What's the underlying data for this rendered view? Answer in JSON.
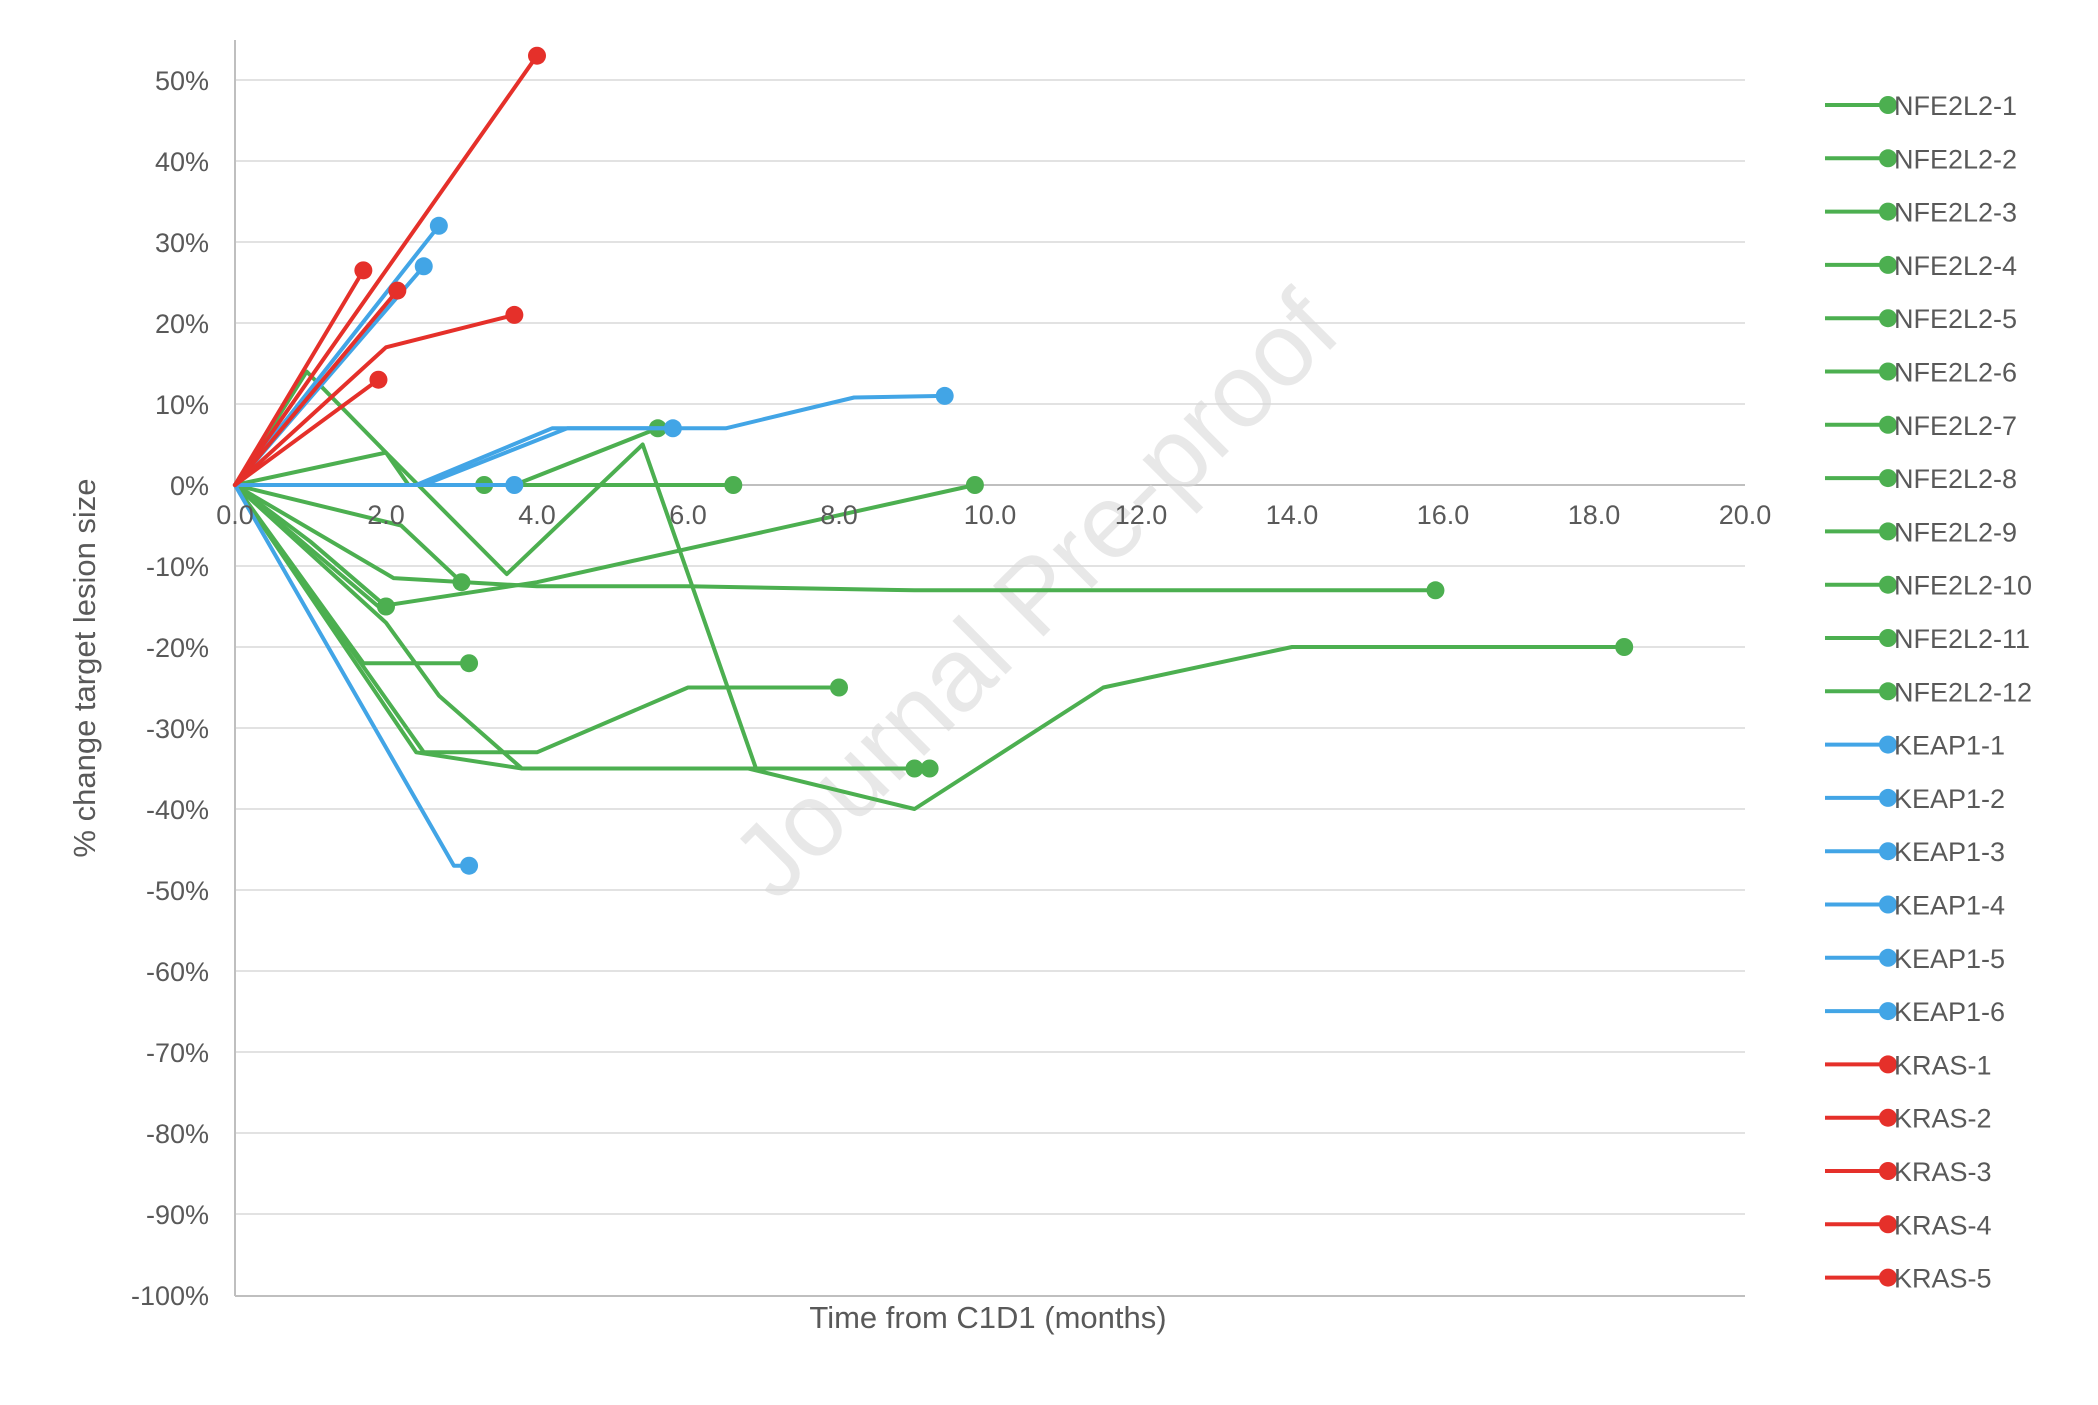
{
  "chart_data": {
    "type": "line",
    "xlabel": "Time from C1D1 (months)",
    "ylabel": "% change target lesion size",
    "xlim": [
      0,
      20
    ],
    "ylim": [
      -100,
      50
    ],
    "x_ticks": [
      "0.0",
      "2.0",
      "4.0",
      "6.0",
      "8.0",
      "10.0",
      "12.0",
      "14.0",
      "16.0",
      "18.0",
      "20.0"
    ],
    "y_ticks": [
      "50%",
      "40%",
      "30%",
      "20%",
      "10%",
      "0%",
      "-10%",
      "-20%",
      "-30%",
      "-40%",
      "-50%",
      "-60%",
      "-70%",
      "-80%",
      "-90%",
      "-100%"
    ],
    "grid": true,
    "legend_position": "right",
    "watermark": "Journal Pre-proof",
    "colors": {
      "NFE2L2": "#4caf50",
      "KEAP1": "#42a5e6",
      "KRAS": "#e5302a"
    },
    "series": [
      {
        "name": "NFE2L2-1",
        "group": "NFE2L2",
        "points": [
          [
            0,
            0
          ],
          [
            2.1,
            -11.5
          ],
          [
            4.0,
            -12.5
          ],
          [
            6.0,
            -12.5
          ],
          [
            9.0,
            -13
          ],
          [
            15.9,
            -13
          ]
        ]
      },
      {
        "name": "NFE2L2-2",
        "group": "NFE2L2",
        "points": [
          [
            0,
            0
          ],
          [
            1.9,
            -15
          ],
          [
            4.0,
            -12
          ],
          [
            9.8,
            0
          ]
        ]
      },
      {
        "name": "NFE2L2-3",
        "group": "NFE2L2",
        "points": [
          [
            0,
            0
          ],
          [
            1.7,
            -22
          ],
          [
            3.1,
            -22
          ]
        ]
      },
      {
        "name": "NFE2L2-4",
        "group": "NFE2L2",
        "points": [
          [
            0,
            0
          ],
          [
            2.0,
            -17
          ],
          [
            2.7,
            -26
          ],
          [
            3.8,
            -35
          ],
          [
            6.8,
            -35
          ],
          [
            9.0,
            -40
          ],
          [
            11.5,
            -25
          ],
          [
            14.0,
            -20
          ],
          [
            18.4,
            -20
          ]
        ]
      },
      {
        "name": "NFE2L2-5",
        "group": "NFE2L2",
        "points": [
          [
            0,
            0
          ],
          [
            2.5,
            -33
          ],
          [
            4.0,
            -33
          ],
          [
            6.0,
            -25
          ],
          [
            8.0,
            -25
          ]
        ]
      },
      {
        "name": "NFE2L2-6",
        "group": "NFE2L2",
        "points": [
          [
            0,
            0
          ],
          [
            2.4,
            -33
          ],
          [
            3.8,
            -35
          ],
          [
            6.0,
            -35
          ],
          [
            9.2,
            -35
          ]
        ]
      },
      {
        "name": "NFE2L2-7",
        "group": "NFE2L2",
        "points": [
          [
            0,
            0
          ],
          [
            0.95,
            14
          ],
          [
            2.0,
            4
          ],
          [
            2.3,
            0
          ],
          [
            3.3,
            0
          ]
        ]
      },
      {
        "name": "NFE2L2-8",
        "group": "NFE2L2",
        "points": [
          [
            0,
            0
          ],
          [
            1.8,
            0
          ],
          [
            3.7,
            0
          ],
          [
            5.6,
            7
          ]
        ]
      },
      {
        "name": "NFE2L2-9",
        "group": "NFE2L2",
        "points": [
          [
            0,
            0
          ],
          [
            2.0,
            4
          ],
          [
            3.6,
            -11
          ],
          [
            5.4,
            5
          ],
          [
            6.9,
            -35
          ],
          [
            9.0,
            -35
          ]
        ]
      },
      {
        "name": "NFE2L2-10",
        "group": "NFE2L2",
        "points": [
          [
            0,
            0
          ],
          [
            3.0,
            0
          ],
          [
            6.6,
            0
          ]
        ]
      },
      {
        "name": "NFE2L2-11",
        "group": "NFE2L2",
        "points": [
          [
            0,
            0
          ],
          [
            1.0,
            -7
          ],
          [
            2.0,
            -15
          ]
        ]
      },
      {
        "name": "NFE2L2-12",
        "group": "NFE2L2",
        "points": [
          [
            0,
            0
          ],
          [
            2.2,
            -5
          ],
          [
            3.0,
            -12
          ]
        ]
      },
      {
        "name": "KEAP1-1",
        "group": "KEAP1",
        "points": [
          [
            0,
            0
          ],
          [
            2.7,
            32
          ]
        ]
      },
      {
        "name": "KEAP1-2",
        "group": "KEAP1",
        "points": [
          [
            0,
            0
          ],
          [
            2.5,
            27
          ]
        ]
      },
      {
        "name": "KEAP1-3",
        "group": "KEAP1",
        "points": [
          [
            0,
            0
          ],
          [
            2.4,
            0
          ],
          [
            4.2,
            7
          ],
          [
            6.5,
            7
          ],
          [
            8.2,
            10.8
          ],
          [
            9.4,
            11
          ]
        ]
      },
      {
        "name": "KEAP1-4",
        "group": "KEAP1",
        "points": [
          [
            0,
            0
          ],
          [
            2.5,
            0
          ],
          [
            4.4,
            7
          ],
          [
            5.8,
            7
          ]
        ]
      },
      {
        "name": "KEAP1-5",
        "group": "KEAP1",
        "points": [
          [
            0,
            0
          ],
          [
            1.8,
            0
          ],
          [
            3.7,
            0
          ]
        ]
      },
      {
        "name": "KEAP1-6",
        "group": "KEAP1",
        "points": [
          [
            0,
            0
          ],
          [
            2.9,
            -47
          ],
          [
            3.1,
            -47
          ]
        ]
      },
      {
        "name": "KRAS-1",
        "group": "KRAS",
        "points": [
          [
            0,
            0
          ],
          [
            4.0,
            53
          ]
        ]
      },
      {
        "name": "KRAS-2",
        "group": "KRAS",
        "points": [
          [
            0,
            0
          ],
          [
            1.7,
            26.5
          ]
        ]
      },
      {
        "name": "KRAS-3",
        "group": "KRAS",
        "points": [
          [
            0,
            0
          ],
          [
            2.15,
            24
          ]
        ]
      },
      {
        "name": "KRAS-4",
        "group": "KRAS",
        "points": [
          [
            0,
            0
          ],
          [
            2.0,
            17
          ],
          [
            3.7,
            21
          ]
        ]
      },
      {
        "name": "KRAS-5",
        "group": "KRAS",
        "points": [
          [
            0,
            0
          ],
          [
            1.9,
            13
          ]
        ]
      }
    ]
  }
}
